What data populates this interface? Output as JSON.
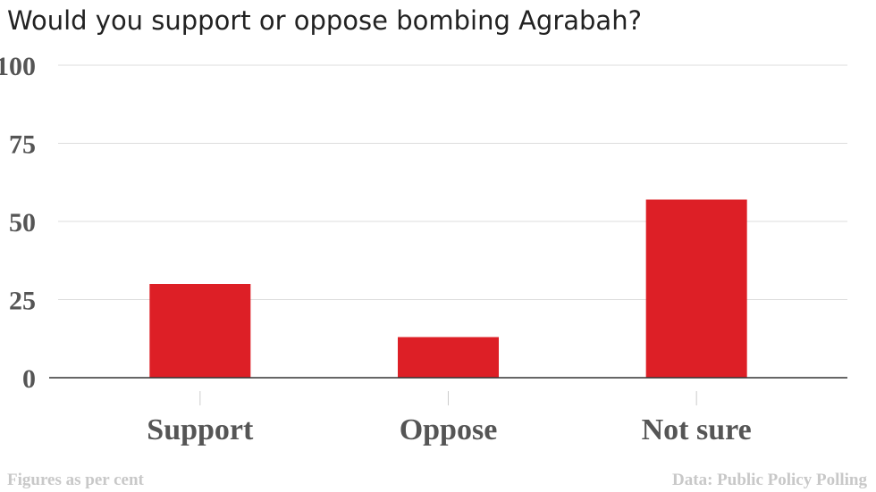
{
  "chart_data": {
    "type": "bar",
    "title": "Would you support or oppose bombing Agrabah?",
    "categories": [
      "Support",
      "Oppose",
      "Not sure"
    ],
    "values": [
      30,
      13,
      57
    ],
    "ylim": [
      0,
      100
    ],
    "yticks": [
      0,
      25,
      50,
      75,
      100
    ],
    "grid": true,
    "bar_color": "#dd1f26",
    "note": "Figures as per cent",
    "source": "Data: Public Policy Polling"
  }
}
